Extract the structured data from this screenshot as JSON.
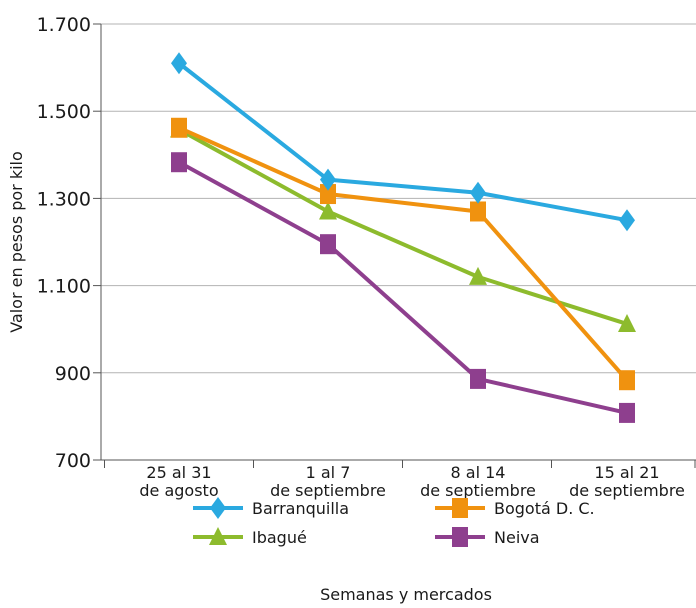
{
  "chart_data": {
    "type": "line",
    "title": "",
    "ylabel": "Valor en pesos por kilo",
    "xlabel": "Semanas y mercados",
    "ylim": [
      700,
      1700
    ],
    "yticks": [
      700,
      900,
      1100,
      1300,
      1500,
      1700
    ],
    "ytick_labels": [
      "700",
      "900",
      "1.100",
      "1.300",
      "1.500",
      "1.700"
    ],
    "categories": [
      [
        "25 al 31",
        "de agosto"
      ],
      [
        "1 al 7",
        "de septiembre"
      ],
      [
        "8 al 14",
        "de septiembre"
      ],
      [
        "15 al 21",
        "de septiembre"
      ]
    ],
    "grid": "horizontal",
    "legend_position": "bottom",
    "series": [
      {
        "name": "Barranquilla",
        "marker": "diamond",
        "color": "#2aa9e0",
        "values": [
          1610,
          1343,
          1313,
          1250
        ]
      },
      {
        "name": "Bogotá D. C.",
        "marker": "square",
        "color": "#f0920f",
        "values": [
          1462,
          1310,
          1270,
          883
        ]
      },
      {
        "name": "Ibagué",
        "marker": "triangle",
        "color": "#8dbb2d",
        "values": [
          1458,
          1270,
          1120,
          1012
        ]
      },
      {
        "name": "Neiva",
        "marker": "square",
        "color": "#8e3f8e",
        "values": [
          1383,
          1195,
          886,
          808
        ]
      }
    ]
  }
}
